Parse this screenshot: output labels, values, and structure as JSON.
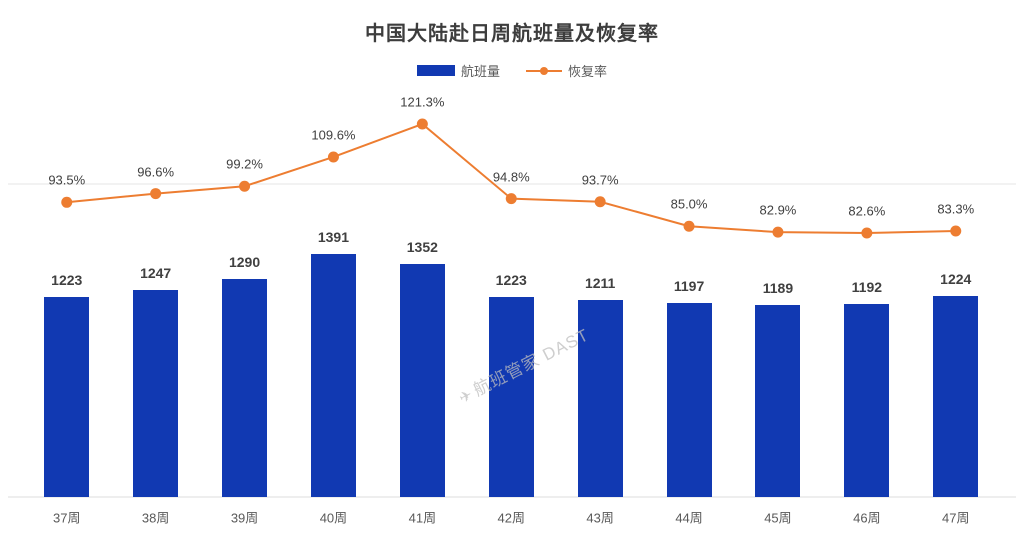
{
  "title": "中国大陆赴日周航班量及恢复率",
  "legend": {
    "bar_label": "航班量",
    "line_label": "恢复率"
  },
  "watermark": {
    "icon": "✈",
    "text": "航班管家 DAST"
  },
  "colors": {
    "bar": "#1139b2",
    "line": "#ed7d31",
    "grid": "#e4e4e4",
    "axis_line": "#dcdcdc",
    "title_text": "#3d3d3d",
    "label_text": "#404040",
    "axis_text": "#595959"
  },
  "chart_data": {
    "type": "bar",
    "subtype": "bar-line-combo",
    "title": "中国大陆赴日周航班量及恢复率",
    "categories": [
      "37周",
      "38周",
      "39周",
      "40周",
      "41周",
      "42周",
      "43周",
      "44周",
      "45周",
      "46周",
      "47周"
    ],
    "series": [
      {
        "name": "航班量",
        "type": "bar",
        "values": [
          1223,
          1247,
          1290,
          1391,
          1352,
          1223,
          1211,
          1197,
          1189,
          1192,
          1224
        ],
        "labels": [
          "1223",
          "1247",
          "1290",
          "1391",
          "1352",
          "1223",
          "1211",
          "1197",
          "1189",
          "1192",
          "1224"
        ]
      },
      {
        "name": "恢复率",
        "type": "line",
        "values": [
          93.5,
          96.6,
          99.2,
          109.6,
          121.3,
          94.8,
          93.7,
          85.0,
          82.9,
          82.6,
          83.3
        ],
        "labels": [
          "93.5%",
          "96.6%",
          "99.2%",
          "109.6%",
          "121.3%",
          "94.8%",
          "93.7%",
          "85.0%",
          "82.9%",
          "82.6%",
          "83.3%"
        ]
      }
    ],
    "xlabel": "",
    "ylabel": "",
    "axes_hidden": true,
    "gridline_at_line_value_pct": 100,
    "legend_position": "top",
    "data_labels_shown": true
  }
}
